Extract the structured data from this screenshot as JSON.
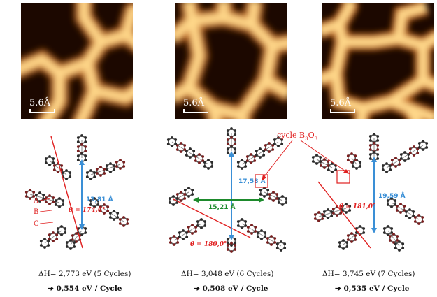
{
  "panels": [
    {
      "scale_label": "5.6Å",
      "dH": "ΔH= 2,773 eV  (5 Cycles)",
      "per_cycle": "➔  0,554 eV / Cycle",
      "distance": "13,81 Å",
      "angle": "θ = 174,6°",
      "labels": [
        "A",
        "B",
        "C"
      ]
    },
    {
      "scale_label": "5.6Å",
      "dH": "ΔH= 3,048 eV  (6 Cycles)",
      "per_cycle": "➔  0,508 eV / Cycle",
      "distance_vertical": "17,58 Å",
      "distance_horizontal": "15,21 Å",
      "angle": "θ = 180,0°",
      "callout": "cycle B3O3"
    },
    {
      "scale_label": "5.6Å",
      "dH": "ΔH= 3,745 eV  (7 Cycles)",
      "per_cycle": "➔  0,535 eV / Cycle",
      "distance": "19,59 Å",
      "angle": "θ = 181,0°"
    }
  ],
  "colors": {
    "distance_arrow": "#3a8fd6",
    "angle_line": "#e02020",
    "horizontal_arrow": "#1d8a2c",
    "stm_dark": "#160600",
    "stm_bright": "#ffd27a"
  }
}
